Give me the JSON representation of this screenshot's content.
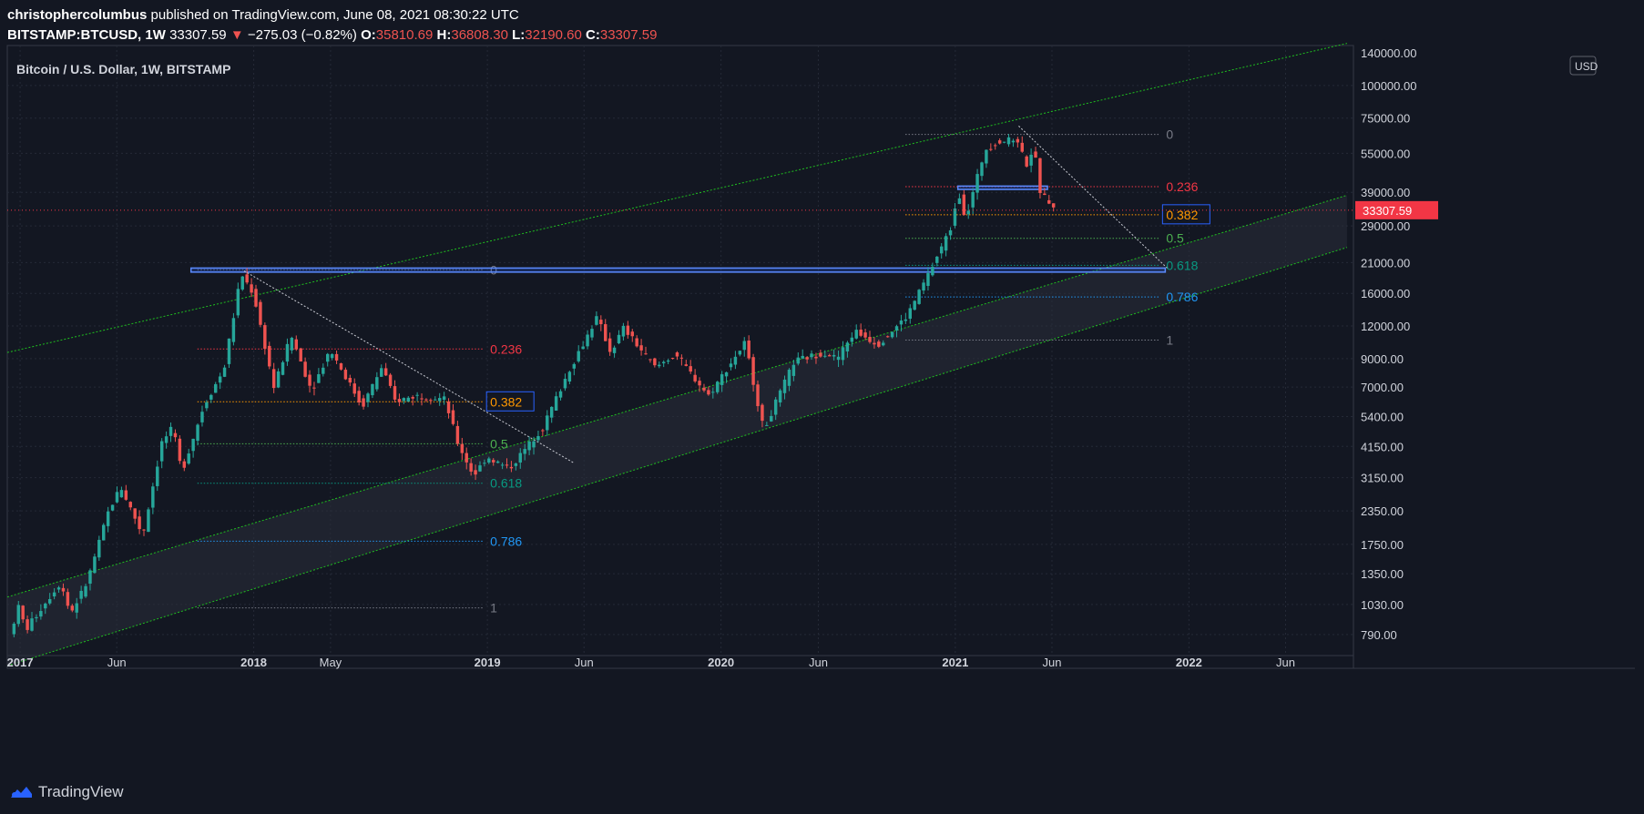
{
  "header": {
    "author": "christophercolumbus",
    "published": "published on TradingView.com, June 08, 2021 08:30:22 UTC",
    "symbol": "BITSTAMP:BTCUSD, 1W",
    "last": "33307.59",
    "arrow": "▼",
    "change": "−275.03 (−0.82%)",
    "o_label": "O:",
    "o_val": "35810.69",
    "h_label": "H:",
    "h_val": "36808.30",
    "l_label": "L:",
    "l_val": "32190.60",
    "c_label": "C:",
    "c_val": "33307.59"
  },
  "footer": {
    "brand": "TradingView"
  },
  "chart_data": {
    "type": "candlestick",
    "title": "Bitcoin / U.S. Dollar, 1W, BITSTAMP",
    "currency": "USD",
    "scale": "log",
    "ylim": [
      700,
      140000
    ],
    "y_ticks": [
      790,
      1030,
      1350,
      1750,
      2350,
      3150,
      4150,
      5400,
      7000,
      9000,
      12000,
      16000,
      21000,
      29000,
      39000,
      55000,
      75000,
      100000
    ],
    "y_tick_labels": [
      "790.00",
      "1030.00",
      "1350.00",
      "1750.00",
      "2350.00",
      "3150.00",
      "4150.00",
      "5400.00",
      "7000.00",
      "9000.00",
      "12000.00",
      "16000.00",
      "21000.00",
      "29000.00",
      "39000.00",
      "55000.00",
      "75000.00",
      "100000.00"
    ],
    "y_top_label": "140000.00",
    "x_ticks": [
      {
        "date": "2017-01-01",
        "label": "2017"
      },
      {
        "date": "2017-06-01",
        "label": "Jun"
      },
      {
        "date": "2018-01-01",
        "label": "2018"
      },
      {
        "date": "2018-05-01",
        "label": "May"
      },
      {
        "date": "2019-01-01",
        "label": "2019"
      },
      {
        "date": "2019-06-01",
        "label": "Jun"
      },
      {
        "date": "2020-01-01",
        "label": "2020"
      },
      {
        "date": "2020-06-01",
        "label": "Jun"
      },
      {
        "date": "2021-01-01",
        "label": "2021"
      },
      {
        "date": "2021-06-01",
        "label": "Jun"
      },
      {
        "date": "2022-01-01",
        "label": "2022"
      },
      {
        "date": "2022-06-01",
        "label": "Jun"
      }
    ],
    "price_path": [
      [
        "2016-12-20",
        790
      ],
      [
        "2017-01-04",
        1020
      ],
      [
        "2017-01-14",
        820
      ],
      [
        "2017-02-20",
        1100
      ],
      [
        "2017-03-10",
        1250
      ],
      [
        "2017-03-25",
        950
      ],
      [
        "2017-04-20",
        1250
      ],
      [
        "2017-05-25",
        2400
      ],
      [
        "2017-06-12",
        2900
      ],
      [
        "2017-07-16",
        1900
      ],
      [
        "2017-08-15",
        4300
      ],
      [
        "2017-09-01",
        4900
      ],
      [
        "2017-09-15",
        3300
      ],
      [
        "2017-10-20",
        6000
      ],
      [
        "2017-11-10",
        7400
      ],
      [
        "2017-11-20",
        8200
      ],
      [
        "2017-12-17",
        19000
      ],
      [
        "2018-01-05",
        16000
      ],
      [
        "2018-02-06",
        7000
      ],
      [
        "2018-03-05",
        11000
      ],
      [
        "2018-04-06",
        6800
      ],
      [
        "2018-05-05",
        9800
      ],
      [
        "2018-06-24",
        5900
      ],
      [
        "2018-07-25",
        8400
      ],
      [
        "2018-08-14",
        6200
      ],
      [
        "2018-09-20",
        6500
      ],
      [
        "2018-10-31",
        6300
      ],
      [
        "2018-11-20",
        4300
      ],
      [
        "2018-12-15",
        3200
      ],
      [
        "2019-01-05",
        3800
      ],
      [
        "2019-02-08",
        3400
      ],
      [
        "2019-04-02",
        4900
      ],
      [
        "2019-05-14",
        8200
      ],
      [
        "2019-06-26",
        13000
      ],
      [
        "2019-07-17",
        9500
      ],
      [
        "2019-08-06",
        11800
      ],
      [
        "2019-09-25",
        8300
      ],
      [
        "2019-10-26",
        9400
      ],
      [
        "2019-12-17",
        6500
      ],
      [
        "2020-02-12",
        10400
      ],
      [
        "2020-03-12",
        4800
      ],
      [
        "2020-04-29",
        8800
      ],
      [
        "2020-06-15",
        9500
      ],
      [
        "2020-07-05",
        9000
      ],
      [
        "2020-08-02",
        11500
      ],
      [
        "2020-09-07",
        10200
      ],
      [
        "2020-10-21",
        13000
      ],
      [
        "2020-11-25",
        19000
      ],
      [
        "2020-12-31",
        29000
      ],
      [
        "2021-01-09",
        40000
      ],
      [
        "2021-01-22",
        31000
      ],
      [
        "2021-02-21",
        57000
      ],
      [
        "2021-03-13",
        61000
      ],
      [
        "2021-04-14",
        62000
      ],
      [
        "2021-04-25",
        49000
      ],
      [
        "2021-05-08",
        58000
      ],
      [
        "2021-05-19",
        38000
      ],
      [
        "2021-06-01",
        36000
      ],
      [
        "2021-06-08",
        33307.59
      ]
    ],
    "current_price": 33307.59,
    "current_price_label": "33307.59",
    "fib_sets": [
      {
        "x_from": "2017-10-05",
        "x_to": "2018-12-25",
        "levels": [
          {
            "ratio": "0",
            "price": 19700,
            "color": "#787b86"
          },
          {
            "ratio": "0.236",
            "price": 9800,
            "color": "#f23645"
          },
          {
            "ratio": "0.382",
            "price": 6150,
            "color": "#ff9800",
            "boxed": true
          },
          {
            "ratio": "0.5",
            "price": 4250,
            "color": "#4caf50"
          },
          {
            "ratio": "0.618",
            "price": 3000,
            "color": "#089981"
          },
          {
            "ratio": "0.786",
            "price": 1800,
            "color": "#2196f3"
          },
          {
            "ratio": "1",
            "price": 1000,
            "color": "#787b86"
          }
        ]
      },
      {
        "x_from": "2020-10-15",
        "x_to": "2021-11-15",
        "levels": [
          {
            "ratio": "0",
            "price": 65000,
            "color": "#787b86"
          },
          {
            "ratio": "0.236",
            "price": 41000,
            "color": "#f23645"
          },
          {
            "ratio": "0.382",
            "price": 32000,
            "color": "#ff9800",
            "boxed": true
          },
          {
            "ratio": "0.5",
            "price": 26000,
            "color": "#4caf50"
          },
          {
            "ratio": "0.618",
            "price": 20500,
            "color": "#089981"
          },
          {
            "ratio": "0.786",
            "price": 15500,
            "color": "#2196f3"
          },
          {
            "ratio": "1",
            "price": 10600,
            "color": "#787b86"
          }
        ]
      }
    ],
    "channel_lines": [
      {
        "from": [
          "2016-12-12",
          9500
        ],
        "to": [
          "2022-09-05",
          145000
        ]
      },
      {
        "from": [
          "2016-12-12",
          1100
        ],
        "to": [
          "2022-09-05",
          38000
        ]
      },
      {
        "from": [
          "2016-12-12",
          600
        ],
        "to": [
          "2022-09-05",
          24000
        ]
      }
    ],
    "trendlines": [
      {
        "from": [
          "2017-12-17",
          19500
        ],
        "to": [
          "2019-05-15",
          3600
        ]
      },
      {
        "from": [
          "2021-04-10",
          70000
        ],
        "to": [
          "2021-11-28",
          20000
        ]
      }
    ],
    "horizontal_zones": [
      {
        "from": "2017-09-25",
        "to": "2021-11-25",
        "low": 19300,
        "high": 20000
      },
      {
        "from": "2021-01-05",
        "to": "2021-05-25",
        "low": 40000,
        "high": 41200
      }
    ],
    "colors": {
      "up": "#26a69a",
      "down": "#ef5350",
      "grid": "#252a37",
      "bg": "#131722",
      "channel": "#1fbf1f",
      "price_tag": "#f23645"
    }
  }
}
